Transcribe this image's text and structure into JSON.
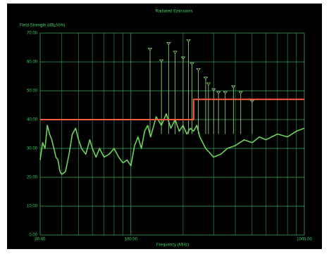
{
  "chart_data": {
    "type": "line",
    "title": "Radiated Emissions",
    "y_label": "Field Strength (dBµV/m)",
    "x_label": "Frequency (MHz)",
    "log_x": true,
    "grid": true,
    "xlim": [
      30,
      1000
    ],
    "ylim": [
      0,
      70
    ],
    "xticks": [
      {
        "value": 30,
        "label": "30.00"
      },
      {
        "value": 100,
        "label": "100.00"
      },
      {
        "value": 1000,
        "label": "1000.00"
      }
    ],
    "xminor": [
      40,
      50,
      60,
      70,
      80,
      90,
      200,
      300,
      400,
      500,
      600,
      700,
      800,
      900
    ],
    "yticks": [
      {
        "value": 0,
        "label": "0.00"
      },
      {
        "value": 10,
        "label": "10.00"
      },
      {
        "value": 20,
        "label": "20.00"
      },
      {
        "value": 30,
        "label": "30.00"
      },
      {
        "value": 40,
        "label": "40.00"
      },
      {
        "value": 50,
        "label": "50.00"
      },
      {
        "value": 60,
        "label": "60.00"
      },
      {
        "value": 70,
        "label": "70.00"
      }
    ],
    "trace": {
      "color": "#6fd35a",
      "x": [
        30,
        31,
        32,
        33,
        34,
        35,
        36,
        37,
        38,
        39,
        40,
        42,
        44,
        46,
        48,
        50,
        52,
        55,
        58,
        60,
        63,
        66,
        70,
        75,
        80,
        85,
        90,
        95,
        100,
        105,
        110,
        115,
        120,
        125,
        130,
        140,
        150,
        160,
        170,
        180,
        190,
        200,
        210,
        220,
        230,
        240,
        250,
        270,
        300,
        330,
        360,
        400,
        450,
        500,
        550,
        600,
        700,
        800,
        900,
        1000
      ],
      "values": [
        26,
        32,
        30,
        38,
        35,
        33,
        30,
        27,
        26,
        22,
        21,
        22,
        28,
        35,
        37,
        33,
        30,
        28,
        33,
        30,
        27,
        30,
        27,
        28,
        30,
        27,
        25,
        26,
        24,
        31,
        34,
        30,
        36,
        38,
        34,
        41,
        38,
        42,
        37,
        40,
        36,
        38,
        35,
        37,
        36,
        38,
        34,
        30,
        27,
        28,
        30,
        31,
        33,
        32,
        34,
        33,
        35,
        34,
        36,
        37
      ]
    },
    "peaks": {
      "color": "#9be08a",
      "x": [
        129,
        150,
        165,
        180,
        200,
        215,
        225,
        245,
        270,
        280,
        300,
        320,
        350,
        390,
        430,
        500
      ],
      "values": [
        64,
        60,
        66,
        63,
        61,
        67,
        59,
        57,
        54,
        52,
        50,
        49,
        49,
        51,
        49,
        46
      ]
    },
    "limit_line": {
      "color": "#ff5a3c",
      "x": [
        30,
        230,
        230,
        1000
      ],
      "values": [
        40,
        40,
        47,
        47
      ]
    }
  }
}
